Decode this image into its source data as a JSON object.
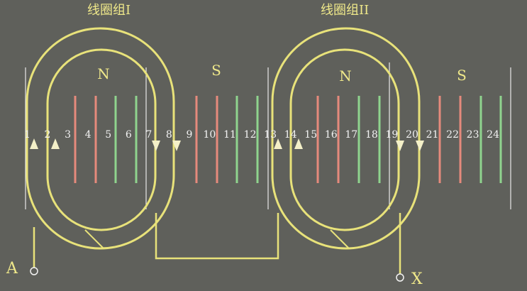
{
  "title_left": "线圈组I",
  "title_right": "线圈组II",
  "poles": [
    "N",
    "S",
    "N",
    "S"
  ],
  "terminals": {
    "start": "A",
    "end": "X"
  },
  "slots": [
    "1",
    "2",
    "3",
    "4",
    "5",
    "6",
    "7",
    "8",
    "9",
    "10",
    "11",
    "12",
    "13",
    "14",
    "15",
    "16",
    "17",
    "18",
    "19",
    "20",
    "21",
    "22",
    "23",
    "24"
  ],
  "colors": {
    "background": "#5f605b",
    "coil": "#e8e27a",
    "n_pole_conductor": "#e68a7c",
    "s_pole_conductor": "#8fd48e",
    "slot_line": "#f0f0f0"
  }
}
